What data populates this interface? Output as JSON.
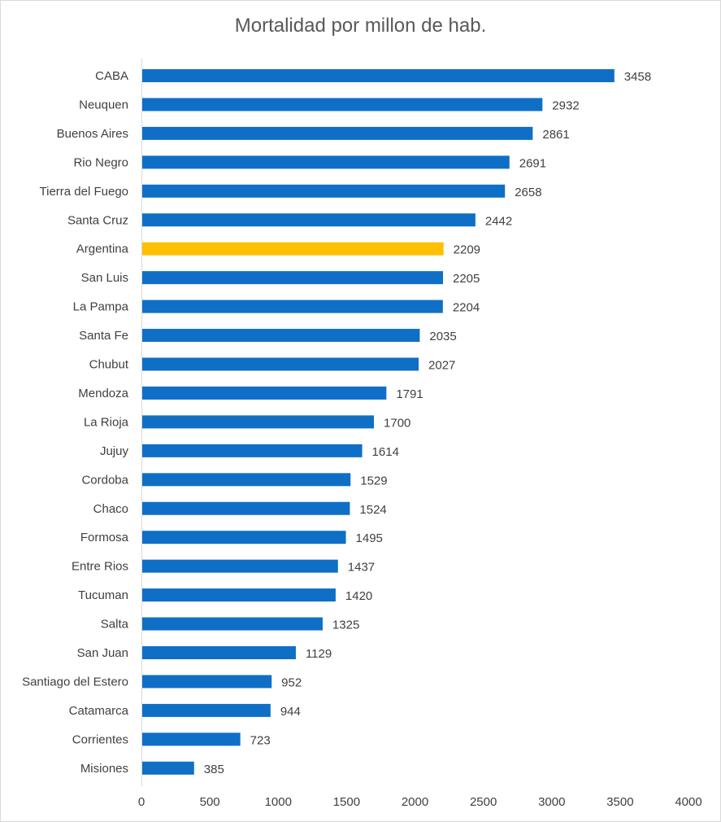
{
  "chart_data": {
    "type": "bar",
    "orientation": "horizontal",
    "title": "Mortalidad por millon de hab.",
    "xlim": [
      0,
      4000
    ],
    "xticks": [
      "0",
      "500",
      "1000",
      "1500",
      "2000",
      "2500",
      "3000",
      "3500",
      "4000"
    ],
    "grid": false,
    "legend": "none",
    "colors": {
      "default": "#0F6FC6",
      "highlight": "#FFC000"
    },
    "highlight_category": "Argentina",
    "categories": [
      "CABA",
      "Neuquen",
      "Buenos Aires",
      "Rio Negro",
      "Tierra del Fuego",
      "Santa Cruz",
      "Argentina",
      "San Luis",
      "La Pampa",
      "Santa Fe",
      "Chubut",
      "Mendoza",
      "La Rioja",
      "Jujuy",
      "Cordoba",
      "Chaco",
      "Formosa",
      "Entre Rios",
      "Tucuman",
      "Salta",
      "San Juan",
      "Santiago del Estero",
      "Catamarca",
      "Corrientes",
      "Misiones"
    ],
    "values": [
      3458,
      2932,
      2861,
      2691,
      2658,
      2442,
      2209,
      2205,
      2204,
      2035,
      2027,
      1791,
      1700,
      1614,
      1529,
      1524,
      1495,
      1437,
      1420,
      1325,
      1129,
      952,
      944,
      723,
      385
    ],
    "value_labels": [
      "3458",
      "2932",
      "2861",
      "2691",
      "2658",
      "2442",
      "2209",
      "2205",
      "2204",
      "2035",
      "2027",
      "1791",
      "1700",
      "1614",
      "1529",
      "1524",
      "1495",
      "1437",
      "1420",
      "1325",
      "1129",
      "952",
      "944",
      "723",
      "385"
    ]
  }
}
